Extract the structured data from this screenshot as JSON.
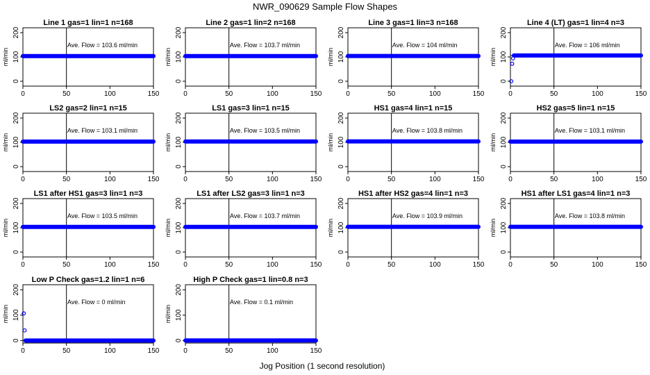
{
  "figure": {
    "title": "NWR_090629  Sample Flow Shapes",
    "xlabel": "Jog Position (1 second resolution)"
  },
  "chart_data": [
    {
      "type": "scatter",
      "title": "Line 1 gas=1 lin=1 n=168",
      "ylabel": "ml/min",
      "annotation": "Ave. Flow =  103.6  ml/min",
      "xlim": [
        0,
        150
      ],
      "ylim": [
        -20,
        220
      ],
      "xticks": [
        0,
        50,
        100,
        150
      ],
      "yticks": [
        0,
        100,
        200
      ],
      "vline_x": 50,
      "hline_y": 103.6,
      "series": [
        {
          "name": "",
          "segments": [
            {
              "x_from": 0,
              "x_to": 150,
              "y": 103.6
            }
          ],
          "points": []
        }
      ]
    },
    {
      "type": "scatter",
      "title": "Line 2 gas=1 lin=2 n=168",
      "ylabel": "ml/min",
      "annotation": "Ave. Flow =  103.7  ml/min",
      "xlim": [
        0,
        150
      ],
      "ylim": [
        -20,
        220
      ],
      "xticks": [
        0,
        50,
        100,
        150
      ],
      "yticks": [
        0,
        100,
        200
      ],
      "vline_x": 50,
      "hline_y": 103.7,
      "series": [
        {
          "name": "",
          "segments": [
            {
              "x_from": 0,
              "x_to": 150,
              "y": 103.7
            }
          ],
          "points": []
        }
      ]
    },
    {
      "type": "scatter",
      "title": "Line 3 gas=1 lin=3 n=168",
      "ylabel": "ml/min",
      "annotation": "Ave. Flow =  104  ml/min",
      "xlim": [
        0,
        150
      ],
      "ylim": [
        -20,
        220
      ],
      "xticks": [
        0,
        50,
        100,
        150
      ],
      "yticks": [
        0,
        100,
        200
      ],
      "vline_x": 50,
      "hline_y": 104,
      "series": [
        {
          "name": "",
          "segments": [
            {
              "x_from": 0,
              "x_to": 150,
              "y": 104
            }
          ],
          "points": []
        }
      ]
    },
    {
      "type": "scatter",
      "title": "Line 4 (LT) gas=1 lin=4 n=3",
      "ylabel": "ml/min",
      "annotation": "Ave. Flow =  106  ml/min",
      "xlim": [
        0,
        150
      ],
      "ylim": [
        -20,
        220
      ],
      "xticks": [
        0,
        50,
        100,
        150
      ],
      "yticks": [
        0,
        100,
        200
      ],
      "vline_x": 50,
      "hline_y": 106,
      "series": [
        {
          "name": "",
          "segments": [
            {
              "x_from": 4,
              "x_to": 150,
              "y": 106
            }
          ],
          "points": [
            [
              1,
              0
            ],
            [
              2,
              72
            ],
            [
              3,
              94
            ]
          ]
        }
      ]
    },
    {
      "type": "scatter",
      "title": "LS2 gas=2 lin=1 n=15",
      "ylabel": "ml/min",
      "annotation": "Ave. Flow =  103.1  ml/min",
      "xlim": [
        0,
        150
      ],
      "ylim": [
        -20,
        220
      ],
      "xticks": [
        0,
        50,
        100,
        150
      ],
      "yticks": [
        0,
        100,
        200
      ],
      "vline_x": 50,
      "hline_y": 103.1,
      "series": [
        {
          "name": "",
          "segments": [
            {
              "x_from": 0,
              "x_to": 150,
              "y": 103.1
            }
          ],
          "points": []
        }
      ]
    },
    {
      "type": "scatter",
      "title": "LS1 gas=3 lin=1 n=15",
      "ylabel": "ml/min",
      "annotation": "Ave. Flow =  103.5  ml/min",
      "xlim": [
        0,
        150
      ],
      "ylim": [
        -20,
        220
      ],
      "xticks": [
        0,
        50,
        100,
        150
      ],
      "yticks": [
        0,
        100,
        200
      ],
      "vline_x": 50,
      "hline_y": 103.5,
      "series": [
        {
          "name": "",
          "segments": [
            {
              "x_from": 0,
              "x_to": 150,
              "y": 103.5
            }
          ],
          "points": []
        }
      ]
    },
    {
      "type": "scatter",
      "title": "HS1 gas=4 lin=1 n=15",
      "ylabel": "ml/min",
      "annotation": "Ave. Flow =  103.8  ml/min",
      "xlim": [
        0,
        150
      ],
      "ylim": [
        -20,
        220
      ],
      "xticks": [
        0,
        50,
        100,
        150
      ],
      "yticks": [
        0,
        100,
        200
      ],
      "vline_x": 50,
      "hline_y": 103.8,
      "series": [
        {
          "name": "",
          "segments": [
            {
              "x_from": 0,
              "x_to": 150,
              "y": 103.8
            }
          ],
          "points": []
        }
      ]
    },
    {
      "type": "scatter",
      "title": "HS2 gas=5 lin=1 n=15",
      "ylabel": "ml/min",
      "annotation": "Ave. Flow =  103.1  ml/min",
      "xlim": [
        0,
        150
      ],
      "ylim": [
        -20,
        220
      ],
      "xticks": [
        0,
        50,
        100,
        150
      ],
      "yticks": [
        0,
        100,
        200
      ],
      "vline_x": 50,
      "hline_y": 103.1,
      "series": [
        {
          "name": "",
          "segments": [
            {
              "x_from": 0,
              "x_to": 150,
              "y": 103.1
            }
          ],
          "points": []
        }
      ]
    },
    {
      "type": "scatter",
      "title": "LS1 after HS1 gas=3 lin=1 n=3",
      "ylabel": "ml/min",
      "annotation": "Ave. Flow =  103.5  ml/min",
      "xlim": [
        0,
        150
      ],
      "ylim": [
        -20,
        220
      ],
      "xticks": [
        0,
        50,
        100,
        150
      ],
      "yticks": [
        0,
        100,
        200
      ],
      "vline_x": 50,
      "hline_y": 103.5,
      "series": [
        {
          "name": "",
          "segments": [
            {
              "x_from": 0,
              "x_to": 150,
              "y": 103.5
            }
          ],
          "points": []
        }
      ]
    },
    {
      "type": "scatter",
      "title": "LS1 after LS2 gas=3 lin=1 n=3",
      "ylabel": "ml/min",
      "annotation": "Ave. Flow =  103.7  ml/min",
      "xlim": [
        0,
        150
      ],
      "ylim": [
        -20,
        220
      ],
      "xticks": [
        0,
        50,
        100,
        150
      ],
      "yticks": [
        0,
        100,
        200
      ],
      "vline_x": 50,
      "hline_y": 103.7,
      "series": [
        {
          "name": "",
          "segments": [
            {
              "x_from": 0,
              "x_to": 150,
              "y": 103.7
            }
          ],
          "points": []
        }
      ]
    },
    {
      "type": "scatter",
      "title": "HS1 after HS2 gas=4 lin=1 n=3",
      "ylabel": "ml/min",
      "annotation": "Ave. Flow =  103.9  ml/min",
      "xlim": [
        0,
        150
      ],
      "ylim": [
        -20,
        220
      ],
      "xticks": [
        0,
        50,
        100,
        150
      ],
      "yticks": [
        0,
        100,
        200
      ],
      "vline_x": 50,
      "hline_y": 103.9,
      "series": [
        {
          "name": "",
          "segments": [
            {
              "x_from": 0,
              "x_to": 150,
              "y": 103.9
            }
          ],
          "points": []
        }
      ]
    },
    {
      "type": "scatter",
      "title": "HS1 after LS1 gas=4 lin=1 n=3",
      "ylabel": "ml/min",
      "annotation": "Ave. Flow =  103.8  ml/min",
      "xlim": [
        0,
        150
      ],
      "ylim": [
        -20,
        220
      ],
      "xticks": [
        0,
        50,
        100,
        150
      ],
      "yticks": [
        0,
        100,
        200
      ],
      "vline_x": 50,
      "hline_y": 103.8,
      "series": [
        {
          "name": "",
          "segments": [
            {
              "x_from": 0,
              "x_to": 150,
              "y": 103.8
            }
          ],
          "points": []
        }
      ]
    },
    {
      "type": "scatter",
      "title": "Low P Check gas=1.2 lin=1 n=6",
      "ylabel": "ml/min",
      "annotation": "Ave. Flow =  0  ml/min",
      "xlim": [
        0,
        150
      ],
      "ylim": [
        -10,
        220
      ],
      "xticks": [
        0,
        50,
        100,
        150
      ],
      "yticks": [
        0,
        100,
        200
      ],
      "vline_x": 50,
      "hline_y": 0,
      "series": [
        {
          "name": "",
          "segments": [
            {
              "x_from": 3,
              "x_to": 150,
              "y": 0
            }
          ],
          "points": [
            [
              1,
              107
            ],
            [
              2,
              40
            ]
          ]
        }
      ]
    },
    {
      "type": "scatter",
      "title": "High P Check gas=1 lin=0.8 n=3",
      "ylabel": "ml/min",
      "annotation": "Ave. Flow =  0.1  ml/min",
      "xlim": [
        0,
        150
      ],
      "ylim": [
        -10,
        220
      ],
      "xticks": [
        0,
        50,
        100,
        150
      ],
      "yticks": [
        0,
        100,
        200
      ],
      "vline_x": 50,
      "hline_y": 0.1,
      "series": [
        {
          "name": "",
          "segments": [
            {
              "x_from": 0,
              "x_to": 150,
              "y": 0.1
            }
          ],
          "points": []
        }
      ]
    }
  ],
  "colors": {
    "points": "#0000ff",
    "axes": "#000000"
  }
}
